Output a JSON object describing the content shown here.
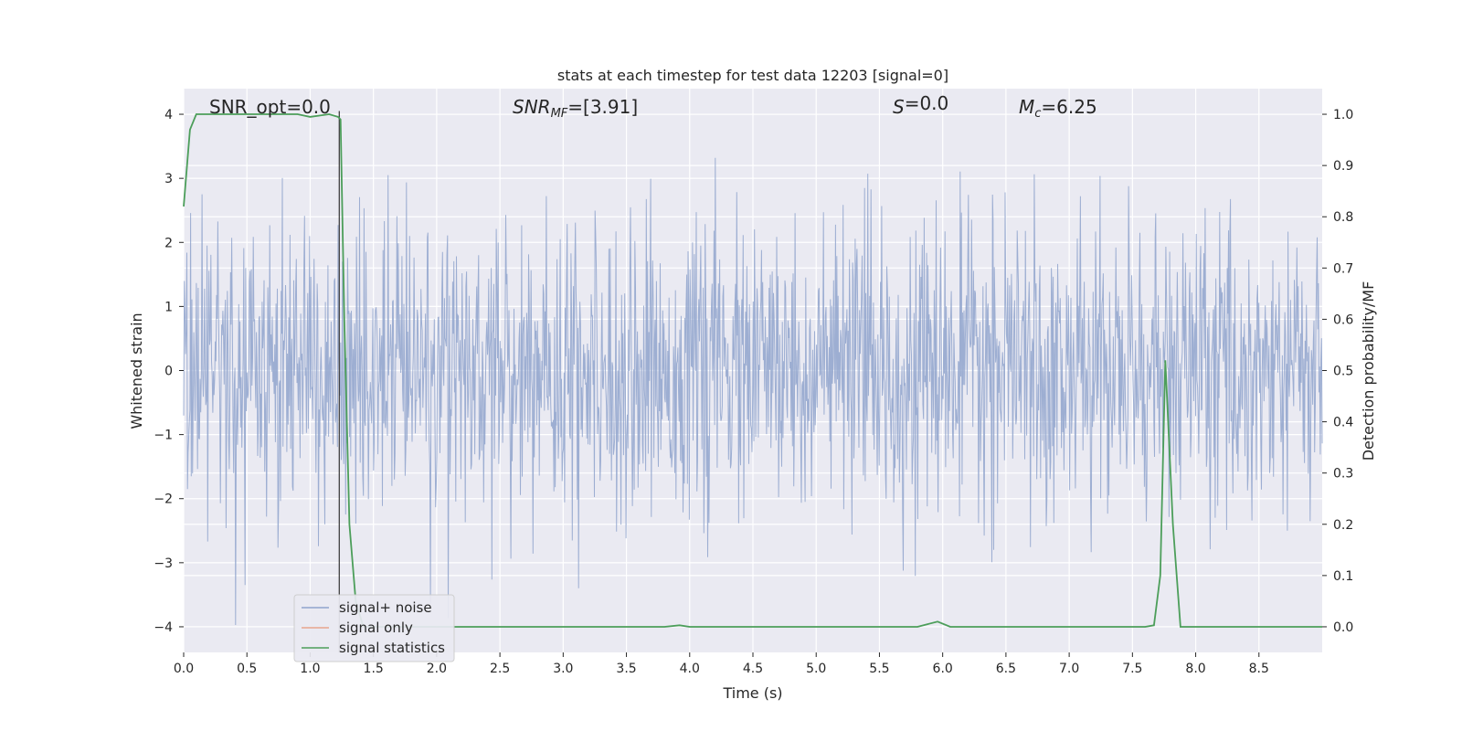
{
  "chart_data": {
    "type": "line",
    "title": "stats at each timestep for test data 12203 [signal=0]",
    "xlabel": "Time (s)",
    "ylabel": "Whitened strain",
    "y2label": "Detection probability/MF",
    "xlim": [
      0.0,
      9.0
    ],
    "ylim": [
      -4.4,
      4.4
    ],
    "y2lim": [
      -0.05,
      1.05
    ],
    "xticks": [
      0.0,
      0.5,
      1.0,
      1.5,
      2.0,
      2.5,
      3.0,
      3.5,
      4.0,
      4.5,
      5.0,
      5.5,
      6.0,
      6.5,
      7.0,
      7.5,
      8.0,
      8.5
    ],
    "xtick_labels": [
      "0.0",
      "0.5",
      "1.0",
      "1.5",
      "2.0",
      "2.5",
      "3.0",
      "3.5",
      "4.0",
      "4.5",
      "5.0",
      "5.5",
      "6.0",
      "6.5",
      "7.0",
      "7.5",
      "8.0",
      "8.5"
    ],
    "yticks": [
      -4,
      -3,
      -2,
      -1,
      0,
      1,
      2,
      3,
      4
    ],
    "ytick_labels": [
      "−4",
      "−3",
      "−2",
      "−1",
      "0",
      "1",
      "2",
      "3",
      "4"
    ],
    "y2ticks": [
      0.0,
      0.1,
      0.2,
      0.3,
      0.4,
      0.5,
      0.6,
      0.7,
      0.8,
      0.9,
      1.0
    ],
    "y2tick_labels": [
      "0.0",
      "0.1",
      "0.2",
      "0.3",
      "0.4",
      "0.5",
      "0.6",
      "0.7",
      "0.8",
      "0.9",
      "1.0"
    ],
    "grid": true,
    "legend_position": "lower-left",
    "vertical_line_x": 1.23,
    "annotations": [
      {
        "text": "SNR_opt=0.0"
      },
      {
        "text_parts": [
          [
            "SNR",
            "italic"
          ],
          [
            "MF",
            "italic-sub"
          ],
          [
            "=[3.91]",
            "normal"
          ]
        ]
      },
      {
        "text_parts": [
          [
            "S",
            "italic"
          ],
          [
            "=0.0",
            "normal"
          ]
        ]
      },
      {
        "text_parts": [
          [
            "M",
            "italic"
          ],
          [
            "c",
            "italic-sub"
          ],
          [
            "=6.25",
            "normal"
          ]
        ]
      }
    ],
    "series": [
      {
        "name": "signal+ noise",
        "color": "#8fa3cc",
        "noise_std": 1.1,
        "n_samples": 1800,
        "approx_range": [
          -4.0,
          4.0
        ]
      },
      {
        "name": "signal only",
        "color": "#e7a58c",
        "values": []
      },
      {
        "name": "signal statistics",
        "color": "#4c9e5a",
        "axis": "right",
        "x": [
          0.0,
          0.05,
          0.1,
          0.2,
          0.5,
          0.9,
          1.0,
          1.15,
          1.22,
          1.24,
          1.27,
          1.31,
          1.36,
          1.42,
          3.8,
          3.92,
          4.0,
          5.8,
          5.88,
          5.96,
          6.06,
          7.6,
          7.67,
          7.72,
          7.76,
          7.82,
          7.88,
          9.0
        ],
        "y": [
          0.82,
          0.97,
          1.0,
          1.0,
          1.0,
          1.0,
          0.995,
          1.0,
          0.995,
          0.99,
          0.6,
          0.2,
          0.05,
          0.0,
          0.0,
          0.003,
          0.0,
          0.0,
          0.005,
          0.01,
          0.0,
          0.0,
          0.003,
          0.1,
          0.52,
          0.2,
          0.0,
          0.0
        ]
      }
    ]
  }
}
